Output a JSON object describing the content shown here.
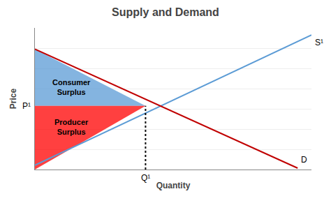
{
  "chart_data": {
    "type": "line",
    "title": "Supply and Demand",
    "x_label": "Quantity",
    "y_label": "Price",
    "xlim": [
      0,
      10
    ],
    "ylim": [
      0,
      10
    ],
    "xticks": [],
    "yticks": [
      0,
      1.4285714285714286,
      2.857142857142857,
      4.285714285714286,
      5.714285714285714,
      7.142857142857143,
      8.571428571428571,
      10
    ],
    "tick_labels": false,
    "grid": true,
    "legend": false,
    "series": [
      {
        "name": "Consumer\nSurplus",
        "type": "area",
        "color": "#5B9BD5",
        "x": [
          0,
          0,
          4.0
        ],
        "values": [
          8.5,
          4.5,
          4.5
        ]
      },
      {
        "name": "Producer\nSurplus",
        "type": "area",
        "color": "#FF0000",
        "x": [
          0,
          0,
          4.0
        ],
        "values": [
          0,
          4.5,
          4.5
        ]
      },
      {
        "name": "S¹",
        "type": "line",
        "color": "#5B9BD5",
        "x": [
          0,
          10
        ],
        "values": [
          0.3,
          9.5
        ]
      },
      {
        "name": "D",
        "type": "line",
        "color": "#C00000",
        "x": [
          0,
          9.5
        ],
        "values": [
          8.5,
          0.1
        ]
      },
      {
        "type": "line",
        "color": "#000000",
        "line_style": "dotted",
        "x": [
          4.0,
          4.0
        ],
        "values": [
          0,
          4.5
        ]
      }
    ],
    "annotations": [
      {
        "text": "P¹",
        "x": 0,
        "y": 4.5
      },
      {
        "text": "Q¹",
        "x": 4.0,
        "y": 0
      }
    ]
  }
}
